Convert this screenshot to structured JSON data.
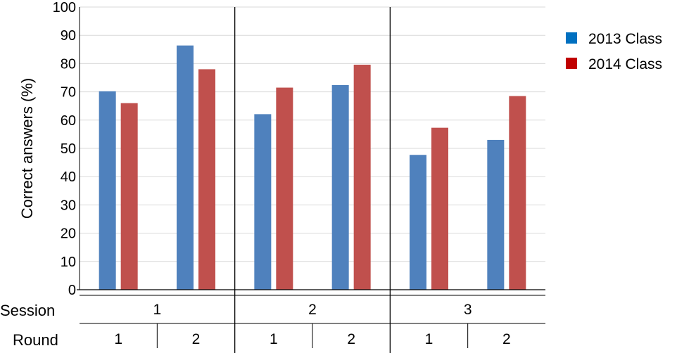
{
  "chart_data": {
    "type": "bar",
    "ylabel": "Correct answers (%)",
    "ylim": [
      0,
      100
    ],
    "yticks": [
      0,
      10,
      20,
      30,
      40,
      50,
      60,
      70,
      80,
      90,
      100
    ],
    "grid": true,
    "legend_position": "right",
    "session_axis_label": "Session",
    "round_axis_label": "Round",
    "sessions": [
      "1",
      "2",
      "3"
    ],
    "categories": [
      {
        "session": "1",
        "round": "1"
      },
      {
        "session": "1",
        "round": "2"
      },
      {
        "session": "2",
        "round": "1"
      },
      {
        "session": "2",
        "round": "2"
      },
      {
        "session": "3",
        "round": "1"
      },
      {
        "session": "3",
        "round": "2"
      }
    ],
    "series": [
      {
        "name": "2013 Class",
        "color": "#4f81bd",
        "legend_color": "#0070c0",
        "values": [
          70.2,
          86.4,
          62.1,
          72.4,
          47.7,
          53.0
        ]
      },
      {
        "name": "2014 Class",
        "color": "#c0504d",
        "legend_color": "#c00000",
        "values": [
          66.0,
          78.0,
          71.5,
          79.6,
          57.3,
          68.5
        ]
      }
    ]
  }
}
